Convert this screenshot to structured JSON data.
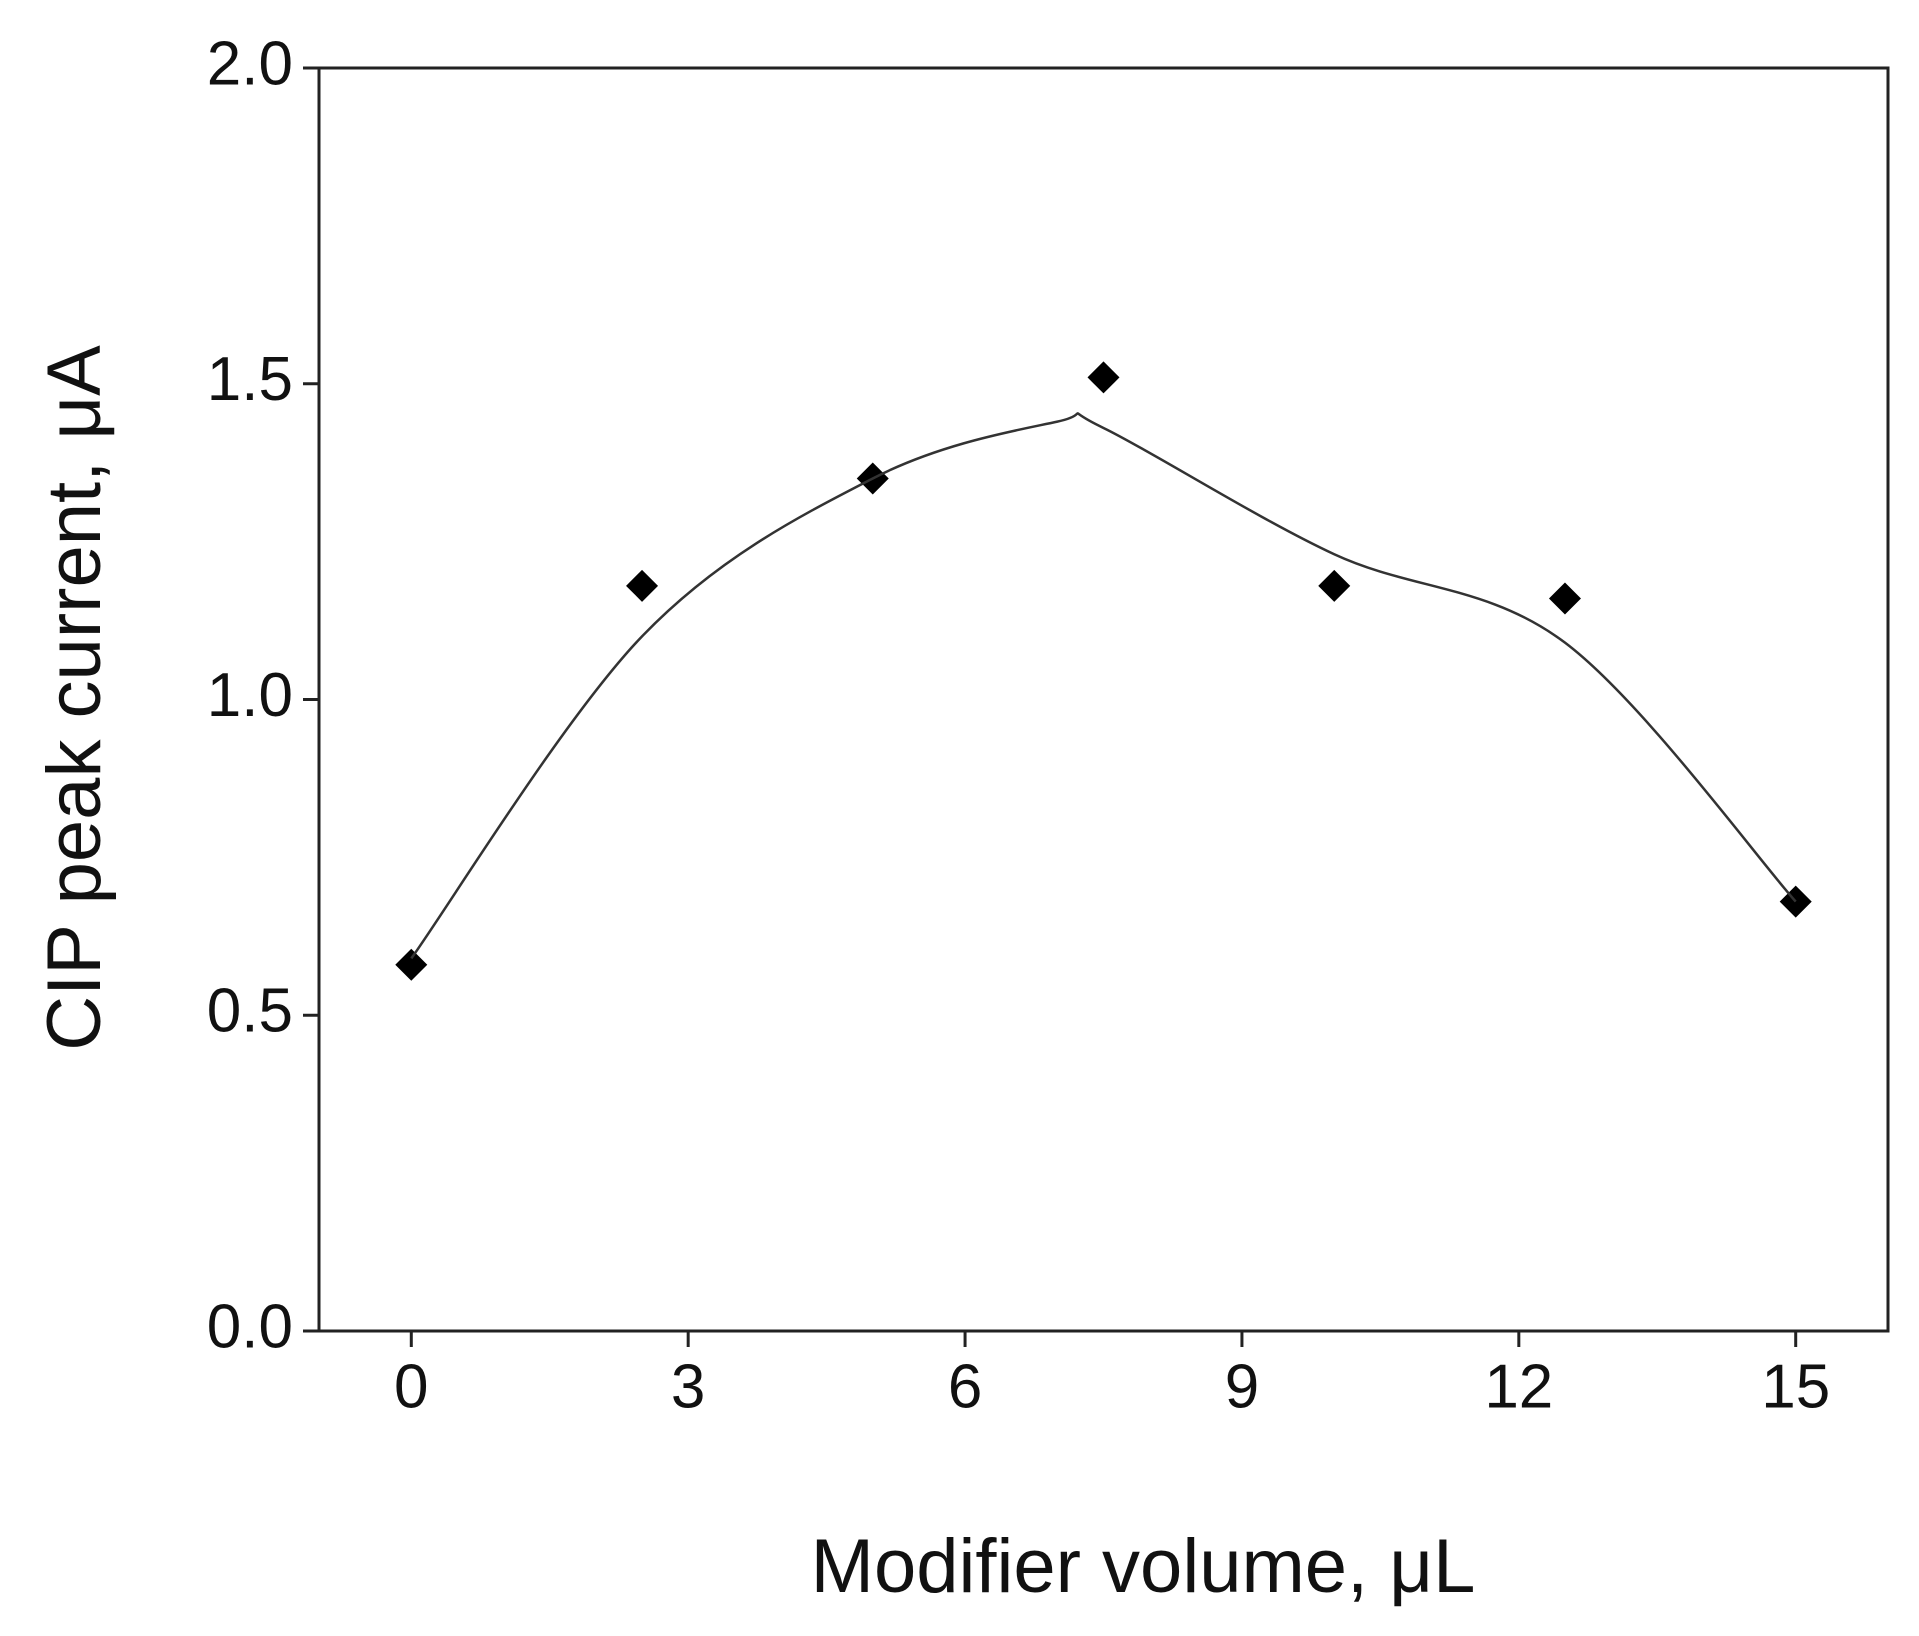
{
  "chart_data": {
    "type": "scatter",
    "x_label": "Modifier volume, μL",
    "y_label": "CIP peak current, μA",
    "xlim": [
      -1,
      16
    ],
    "xticks": [
      0,
      3,
      6,
      9,
      12,
      15
    ],
    "ylim": [
      0,
      2
    ],
    "yticks": [
      {
        "value": 0,
        "label": "0.0"
      },
      {
        "value": 0.5,
        "label": "0.5"
      },
      {
        "value": 1,
        "label": "1.0"
      },
      {
        "value": 1.5,
        "label": "1.5"
      },
      {
        "value": 2,
        "label": "2.0"
      }
    ],
    "series": [
      {
        "type": "scatter",
        "color": "#000000",
        "marker": "diamond",
        "x": [
          0,
          2.5,
          5,
          7.5,
          10,
          12.5,
          15
        ],
        "values": [
          0.58,
          1.18,
          1.35,
          1.51,
          1.18,
          1.16,
          0.68
        ]
      },
      {
        "type": "line",
        "color": "#333333",
        "x": [
          0,
          2.5,
          5,
          7,
          7.5,
          10,
          12.5,
          15
        ],
        "values": [
          0.59,
          1.1,
          1.35,
          1.44,
          1.43,
          1.23,
          1.09,
          0.68
        ]
      }
    ]
  }
}
